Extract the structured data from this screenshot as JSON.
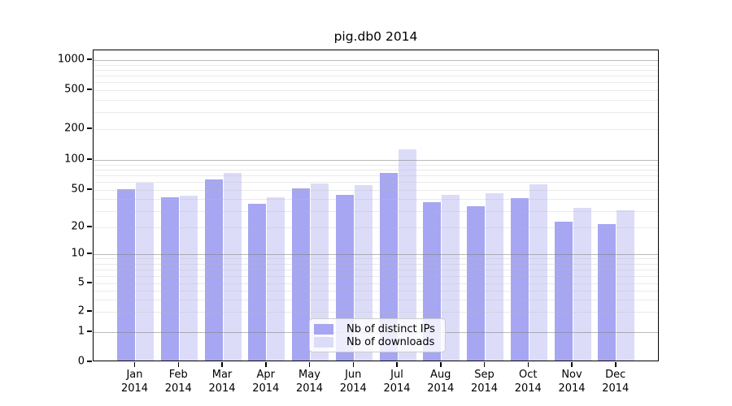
{
  "title": "pig.db0 2014",
  "chart_data": {
    "type": "bar",
    "title": "pig.db0 2014",
    "categories": [
      "Jan 2014",
      "Feb 2014",
      "Mar 2014",
      "Apr 2014",
      "May 2014",
      "Jun 2014",
      "Jul 2014",
      "Aug 2014",
      "Sep 2014",
      "Oct 2014",
      "Nov 2014",
      "Dec 2014"
    ],
    "series": [
      {
        "name": "Nb of distinct IPs",
        "color": "#a6a6f2",
        "values": [
          49,
          40,
          62,
          34,
          50,
          43,
          72,
          36,
          32,
          39,
          22,
          21
        ]
      },
      {
        "name": "Nb of downloads",
        "color": "#dcdcf9",
        "values": [
          57,
          42,
          72,
          40,
          56,
          54,
          123,
          43,
          44,
          55,
          31,
          29
        ]
      }
    ],
    "yscale": "symlog",
    "ylim": [
      0,
      1000
    ],
    "yticks": [
      0,
      1,
      2,
      5,
      10,
      20,
      50,
      100,
      200,
      500,
      1000
    ],
    "xlabel": "",
    "ylabel": "",
    "grid": true,
    "legend_position": "lower center"
  }
}
